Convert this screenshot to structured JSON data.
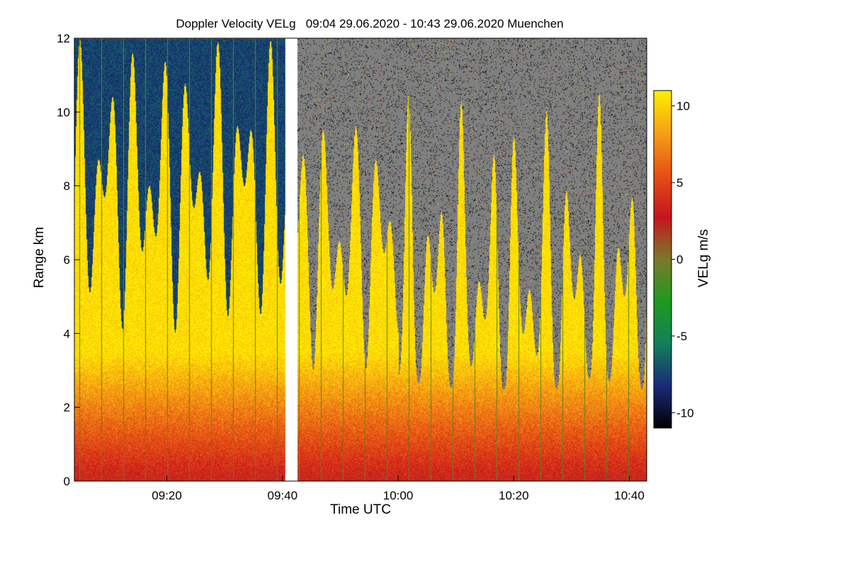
{
  "chart_data": {
    "type": "heatmap",
    "title": "Doppler Velocity VELg   09:04 29.06.2020 - 10:43 29.06.2020 Muenchen",
    "xlabel": "Time UTC",
    "ylabel": "Range km",
    "colorbar_label": "VELg m/s",
    "x_range_min": [
      544,
      643
    ],
    "y_range_km": [
      0,
      12
    ],
    "x_ticks": [
      {
        "label": "09:20",
        "min": 560
      },
      {
        "label": "09:40",
        "min": 580
      },
      {
        "label": "10:00",
        "min": 600
      },
      {
        "label": "10:20",
        "min": 620
      },
      {
        "label": "10:40",
        "min": 640
      }
    ],
    "y_ticks": [
      "0",
      "2",
      "4",
      "6",
      "8",
      "10",
      "12"
    ],
    "y_tick_values": [
      0,
      2,
      4,
      6,
      8,
      10,
      12
    ],
    "colorbar_range": [
      -11,
      11
    ],
    "colorbar_ticks": [
      "10",
      "5",
      "0",
      "-5",
      "-10"
    ],
    "colorbar_tick_values": [
      10,
      5,
      0,
      -5,
      -10
    ],
    "data_gap_min": [
      580.5,
      582.5
    ],
    "colormap": [
      "#000000",
      "#1a2a7a",
      "#12805a",
      "#1e9a1e",
      "#7a7a2a",
      "#c8141e",
      "#e65014",
      "#f5a014",
      "#fff000"
    ],
    "no_signal_color": "#808080"
  }
}
